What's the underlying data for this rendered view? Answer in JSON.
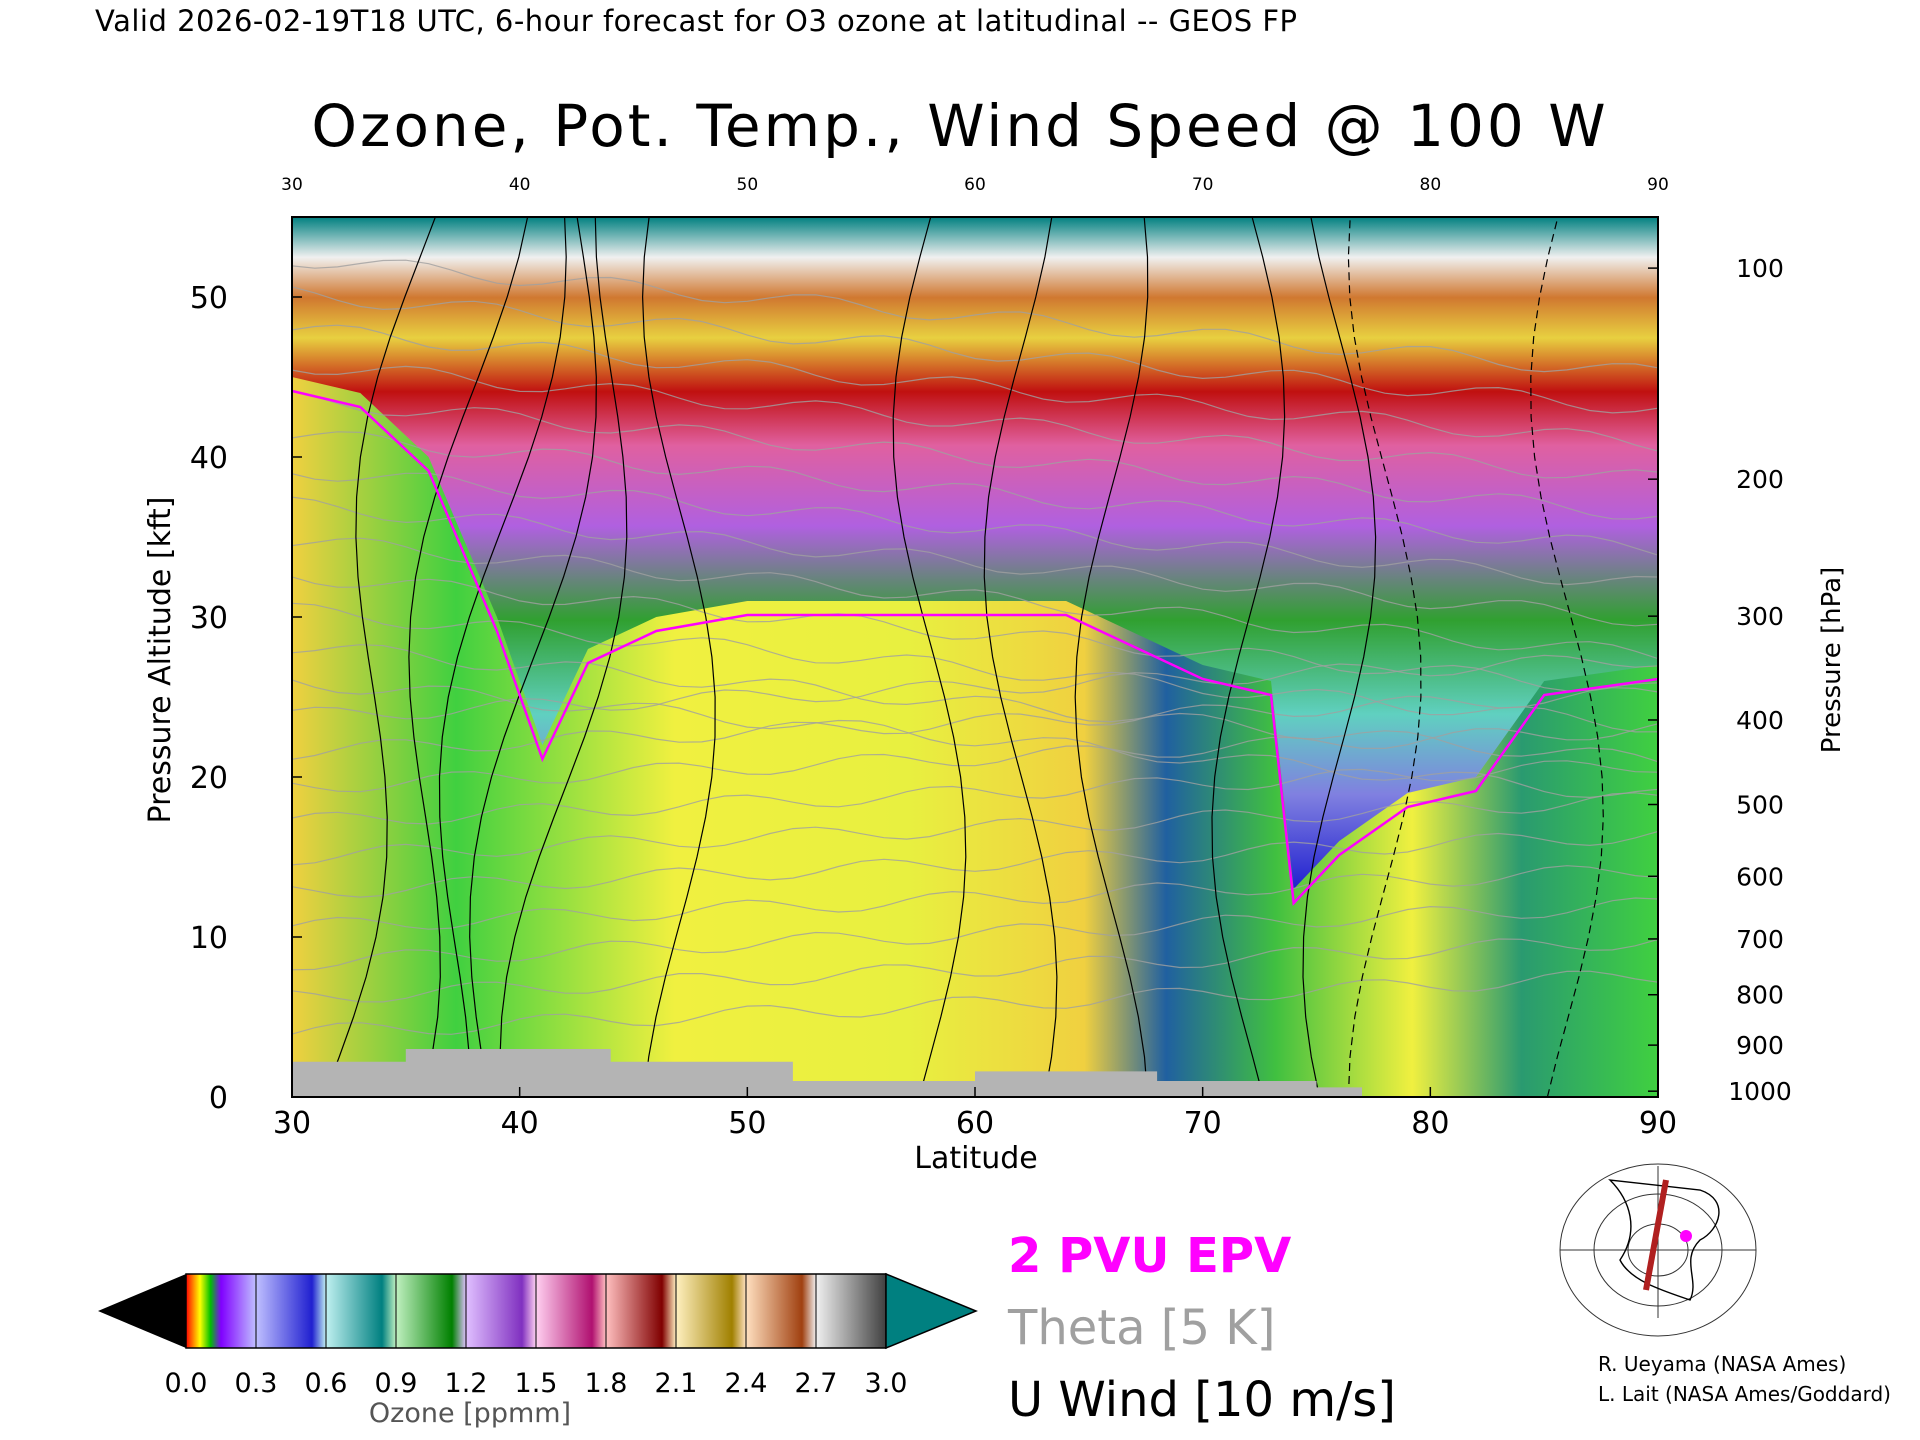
{
  "header": {
    "valid_line": "Valid 2026-02-19T18 UTC, 6-hour forecast for O3 ozone at latitudinal -- GEOS FP",
    "title": "Ozone, Pot. Temp., Wind Speed @ 100 W"
  },
  "chart_data": {
    "type": "heatmap",
    "title": "Ozone, Pot. Temp., Wind Speed @ 100 W",
    "xlabel": "Latitude",
    "ylabel": "Pressure Altitude [kft]",
    "y2label": "Pressure [hPa]",
    "xlim": [
      30,
      90
    ],
    "ylim": [
      0,
      55
    ],
    "x_ticks": [
      30,
      40,
      50,
      60,
      70,
      80,
      90
    ],
    "x_top_ticks": [
      "30",
      "40",
      "50",
      "60",
      "70",
      "80",
      "90"
    ],
    "y_ticks": [
      0,
      10,
      20,
      30,
      40,
      50
    ],
    "pressure_ticks": [
      {
        "label": "100",
        "hpa": 100
      },
      {
        "label": "200",
        "hpa": 200
      },
      {
        "label": "300",
        "hpa": 300
      },
      {
        "label": "400",
        "hpa": 400
      },
      {
        "label": "500",
        "hpa": 500
      },
      {
        "label": "600",
        "hpa": 600
      },
      {
        "label": "700",
        "hpa": 700
      },
      {
        "label": "800",
        "hpa": 800
      },
      {
        "label": "900",
        "hpa": 900
      },
      {
        "label": "1000",
        "hpa": 1000
      }
    ],
    "ozone_colorbar": {
      "label": "Ozone [ppmm]",
      "ticks": [
        "0.0",
        "0.3",
        "0.6",
        "0.9",
        "1.2",
        "1.5",
        "1.8",
        "2.1",
        "2.4",
        "2.7",
        "3.0"
      ],
      "range": [
        0.0,
        3.0
      ]
    },
    "tropopause_height_kft": [
      {
        "lat": 30,
        "kft": 45
      },
      {
        "lat": 33,
        "kft": 44
      },
      {
        "lat": 36,
        "kft": 40
      },
      {
        "lat": 39,
        "kft": 30
      },
      {
        "lat": 41,
        "kft": 22
      },
      {
        "lat": 43,
        "kft": 28
      },
      {
        "lat": 46,
        "kft": 30
      },
      {
        "lat": 50,
        "kft": 31
      },
      {
        "lat": 55,
        "kft": 31
      },
      {
        "lat": 60,
        "kft": 31
      },
      {
        "lat": 64,
        "kft": 31
      },
      {
        "lat": 67,
        "kft": 29
      },
      {
        "lat": 70,
        "kft": 27
      },
      {
        "lat": 73,
        "kft": 26
      },
      {
        "lat": 74,
        "kft": 13
      },
      {
        "lat": 76,
        "kft": 16
      },
      {
        "lat": 79,
        "kft": 19
      },
      {
        "lat": 82,
        "kft": 20
      },
      {
        "lat": 85,
        "kft": 26
      },
      {
        "lat": 90,
        "kft": 27
      }
    ],
    "legend": [
      {
        "name": "2 PVU EPV",
        "color": "#ff00ff"
      },
      {
        "name": "Theta [5 K]",
        "color": "#a0a0a0"
      },
      {
        "name": "U Wind [10 m/s]",
        "color": "#000000"
      }
    ]
  },
  "credits": {
    "line1": "R. Ueyama (NASA Ames)",
    "line2": "L. Lait (NASA Ames/Goddard)"
  },
  "colors": {
    "pvu": "#ff00ff",
    "theta": "#a0a0a0",
    "teal_top": "#008080",
    "terrain": "#b4b4b4"
  }
}
